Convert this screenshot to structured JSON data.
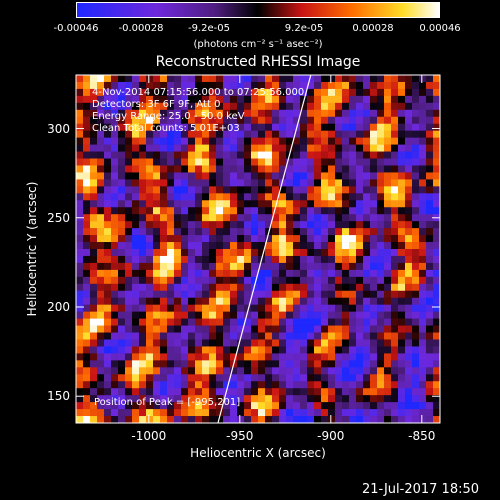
{
  "chart_data": {
    "type": "heatmap",
    "title": "Reconstructed RHESSI Image",
    "xlabel": "Heliocentric X (arcsec)",
    "ylabel": "Heliocentric Y (arcsec)",
    "xlim": [
      -1040,
      -840
    ],
    "ylim": [
      135,
      330
    ],
    "xticks": [
      -1000,
      -950,
      -900,
      -850
    ],
    "yticks": [
      150,
      200,
      250,
      300
    ],
    "colorbar": {
      "ticks": [
        "-0.00046",
        "-0.00028",
        "-9.2e-05",
        "9.2e-05",
        "0.00028",
        "0.00046"
      ],
      "range": [
        -0.00046,
        0.00046
      ],
      "units_label": "(photons cm⁻² s⁻¹ asec⁻²)"
    },
    "info_lines": [
      "4-Nov-2014 07:15:56.000 to 07:25:56.000",
      "Detectors: 3F 6F 9F, Att 0",
      "Energy Range: 25.0 - 50.0 keV",
      "Clean     Total counts: 5.01E+03"
    ],
    "peak_text": "Position of Peak = [-995,201]",
    "limb_line": [
      [
        -962,
        135
      ],
      [
        -911,
        330
      ]
    ],
    "grid": false,
    "colormap": "rhessi-rainbow",
    "colors": {
      "background": "#000000",
      "foreground": "#ffffff"
    }
  },
  "footer": {
    "timestamp": "21-Jul-2017 18:50"
  }
}
